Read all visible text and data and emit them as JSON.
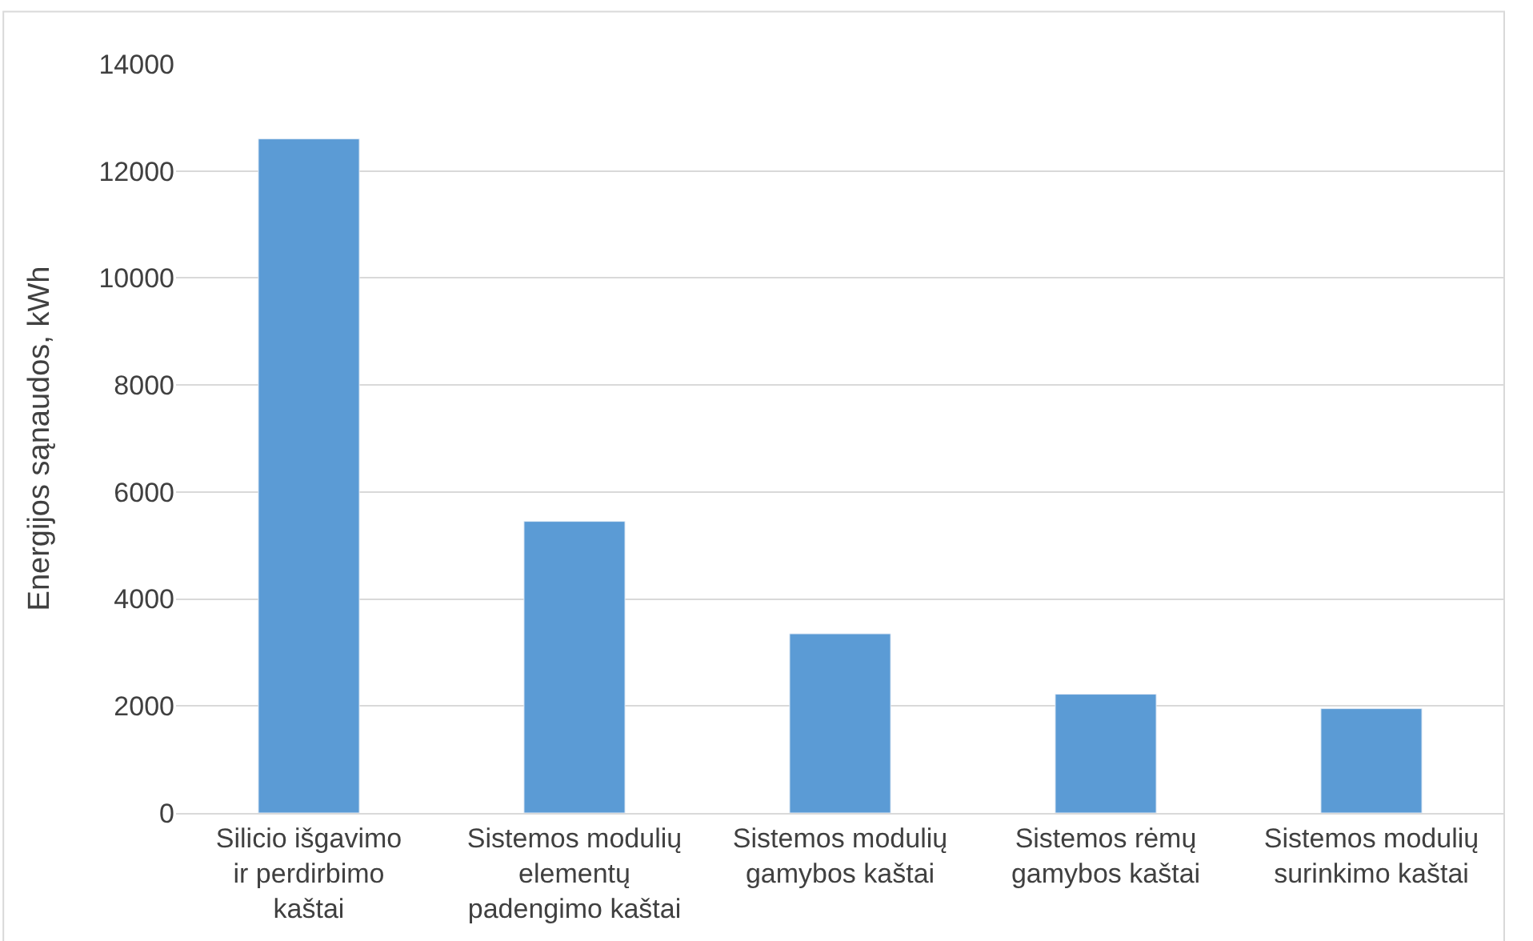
{
  "chart_data": {
    "type": "bar",
    "ylabel": "Energijos sąnaudos, kWh",
    "categories": [
      "Silicio išgavimo ir perdirbimo kaštai",
      "Sistemos modulių elementų padengimo kaštai",
      "Sistemos modulių gamybos kaštai",
      "Sistemos rėmų gamybos kaštai",
      "Sistemos modulių surinkimo kaštai"
    ],
    "values": [
      12600,
      5450,
      3350,
      2220,
      1950
    ],
    "color": "#5b9bd5",
    "ylim": [
      0,
      14000
    ],
    "yticks": [
      0,
      2000,
      4000,
      6000,
      8000,
      10000,
      12000,
      14000
    ],
    "grid": "y"
  }
}
